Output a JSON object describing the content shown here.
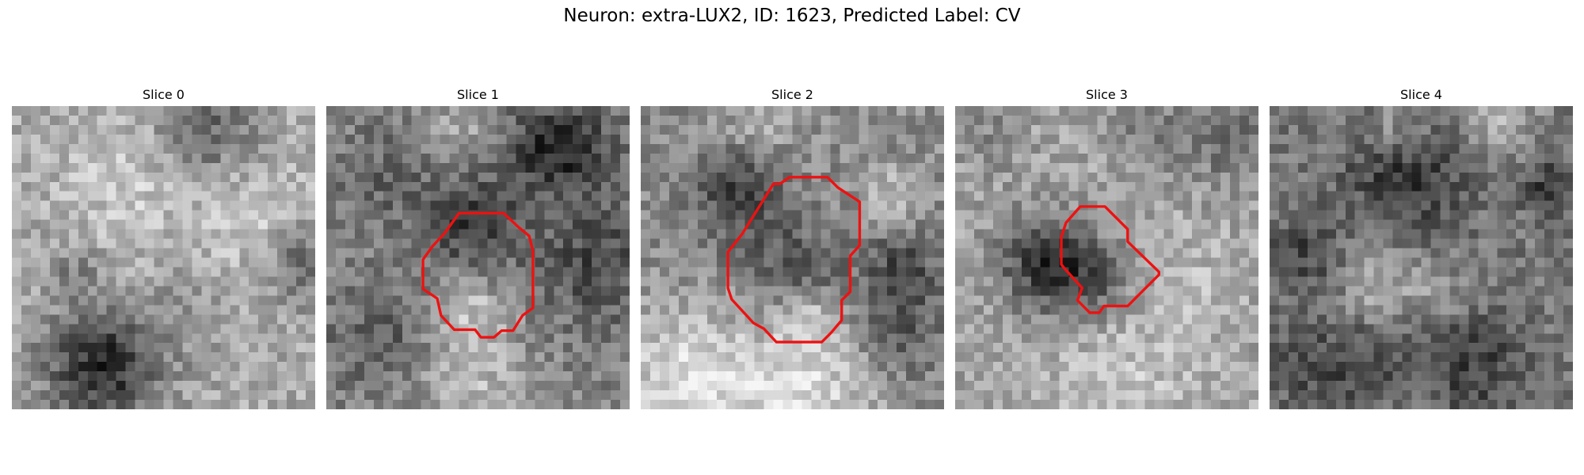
{
  "figure": {
    "title": "Neuron: extra-LUX2, ID: 1623, Predicted Label: CV"
  },
  "panels": [
    {
      "title": "Slice 0"
    },
    {
      "title": "Slice 1"
    },
    {
      "title": "Slice 2"
    },
    {
      "title": "Slice 3"
    },
    {
      "title": "Slice 4"
    }
  ],
  "colors": {
    "contour": "#ee1111"
  }
}
